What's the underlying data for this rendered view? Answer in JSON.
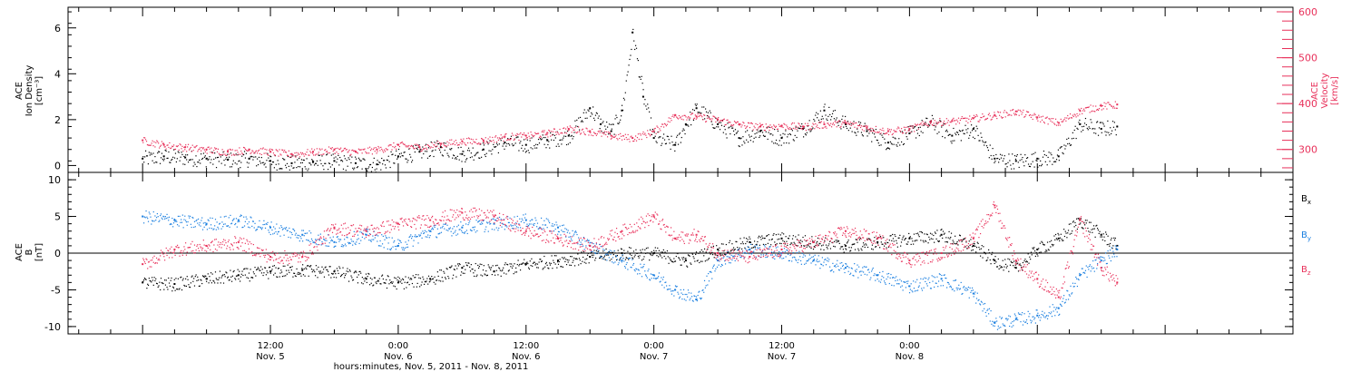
{
  "colors": {
    "axis": "#000000",
    "black_series": "#000000",
    "red_series": "#e8305a",
    "blue_series": "#1a7fe0",
    "zero_line": "#000000"
  },
  "chart_data": [
    {
      "type": "scatter",
      "panel": "top",
      "ylabel_left": [
        "ACE",
        "Ion Density",
        "[cm⁻³]"
      ],
      "ylabel_right": [
        "ACE",
        "Velocity",
        "[km/s]"
      ],
      "ylim_left": [
        -0.3,
        6.9
      ],
      "yticks_left": [
        0,
        2,
        4,
        6
      ],
      "ylim_right": [
        250,
        610
      ],
      "yticks_right": [
        300,
        400,
        500,
        600
      ],
      "grid": false,
      "series": [
        {
          "axis": "left",
          "color": "black",
          "points": [
            [
              0,
              0.3
            ],
            [
              2,
              0.4
            ],
            [
              4,
              0.35
            ],
            [
              6,
              0.3
            ],
            [
              8,
              0.25
            ],
            [
              10,
              0.3
            ],
            [
              12,
              0.2
            ],
            [
              14,
              0.1
            ],
            [
              16,
              0.15
            ],
            [
              18,
              0.2
            ],
            [
              20,
              0.1
            ],
            [
              22,
              0.05
            ],
            [
              24,
              0.4
            ],
            [
              26,
              0.6
            ],
            [
              28,
              0.8
            ],
            [
              30,
              0.5
            ],
            [
              32,
              0.7
            ],
            [
              34,
              1.0
            ],
            [
              36,
              0.9
            ],
            [
              38,
              1.1
            ],
            [
              40,
              1.3
            ],
            [
              42,
              2.5
            ],
            [
              43,
              1.8
            ],
            [
              44,
              1.5
            ],
            [
              45,
              2.4
            ],
            [
              46,
              5.8
            ],
            [
              47,
              3.0
            ],
            [
              48,
              1.2
            ],
            [
              50,
              0.9
            ],
            [
              51,
              1.8
            ],
            [
              52,
              2.5
            ],
            [
              54,
              1.8
            ],
            [
              56,
              1.2
            ],
            [
              58,
              1.5
            ],
            [
              60,
              1.2
            ],
            [
              62,
              1.6
            ],
            [
              64,
              2.4
            ],
            [
              66,
              1.8
            ],
            [
              68,
              1.5
            ],
            [
              70,
              1.0
            ],
            [
              72,
              1.4
            ],
            [
              74,
              1.9
            ],
            [
              76,
              1.3
            ],
            [
              78,
              1.6
            ],
            [
              80,
              0.3
            ],
            [
              82,
              0.2
            ],
            [
              84,
              0.3
            ],
            [
              86,
              0.4
            ],
            [
              88,
              1.8
            ],
            [
              90,
              1.6
            ],
            [
              91.5,
              1.7
            ]
          ]
        },
        {
          "axis": "right",
          "color": "red",
          "points": [
            [
              0,
              320
            ],
            [
              2,
              310
            ],
            [
              4,
              305
            ],
            [
              6,
              300
            ],
            [
              8,
              295
            ],
            [
              10,
              300
            ],
            [
              12,
              295
            ],
            [
              14,
              290
            ],
            [
              16,
              295
            ],
            [
              18,
              300
            ],
            [
              20,
              295
            ],
            [
              22,
              300
            ],
            [
              24,
              310
            ],
            [
              26,
              305
            ],
            [
              28,
              312
            ],
            [
              30,
              318
            ],
            [
              32,
              320
            ],
            [
              34,
              328
            ],
            [
              36,
              330
            ],
            [
              38,
              336
            ],
            [
              40,
              345
            ],
            [
              42,
              340
            ],
            [
              44,
              330
            ],
            [
              46,
              325
            ],
            [
              48,
              340
            ],
            [
              50,
              375
            ],
            [
              52,
              372
            ],
            [
              54,
              365
            ],
            [
              56,
              355
            ],
            [
              58,
              350
            ],
            [
              60,
              352
            ],
            [
              62,
              350
            ],
            [
              64,
              355
            ],
            [
              66,
              358
            ],
            [
              68,
              348
            ],
            [
              70,
              340
            ],
            [
              72,
              345
            ],
            [
              74,
              360
            ],
            [
              76,
              362
            ],
            [
              78,
              368
            ],
            [
              80,
              375
            ],
            [
              82,
              383
            ],
            [
              84,
              370
            ],
            [
              86,
              358
            ],
            [
              88,
              385
            ],
            [
              90,
              395
            ],
            [
              91.5,
              398
            ]
          ]
        }
      ]
    },
    {
      "type": "scatter",
      "panel": "bottom",
      "ylabel_left": [
        "ACE",
        "B",
        "[nT]"
      ],
      "ylim": [
        -11,
        11
      ],
      "yticks": [
        -10,
        -5,
        0,
        5,
        10
      ],
      "legend_position": "right",
      "legend": [
        {
          "base": "B",
          "sub": "x",
          "color": "black"
        },
        {
          "base": "B",
          "sub": "y",
          "color": "blue"
        },
        {
          "base": "B",
          "sub": "z",
          "color": "red"
        }
      ],
      "series": [
        {
          "name": "Bx",
          "color": "black",
          "points": [
            [
              0,
              -4
            ],
            [
              3,
              -4.2
            ],
            [
              6,
              -3.5
            ],
            [
              9,
              -3
            ],
            [
              12,
              -2.5
            ],
            [
              15,
              -2.3
            ],
            [
              18,
              -2.5
            ],
            [
              21,
              -3.5
            ],
            [
              24,
              -4
            ],
            [
              27,
              -3.5
            ],
            [
              30,
              -2
            ],
            [
              33,
              -2.5
            ],
            [
              36,
              -1.5
            ],
            [
              39,
              -1
            ],
            [
              42,
              -0.5
            ],
            [
              45,
              0
            ],
            [
              48,
              0
            ],
            [
              51,
              -1
            ],
            [
              54,
              0.5
            ],
            [
              57,
              1.5
            ],
            [
              60,
              2
            ],
            [
              63,
              1.5
            ],
            [
              66,
              1
            ],
            [
              69,
              1.5
            ],
            [
              72,
              2
            ],
            [
              75,
              2.5
            ],
            [
              78,
              1
            ],
            [
              80,
              -1
            ],
            [
              82,
              -2
            ],
            [
              84,
              0.5
            ],
            [
              86,
              2
            ],
            [
              88,
              4.5
            ],
            [
              90,
              2.5
            ],
            [
              91.5,
              1
            ]
          ]
        },
        {
          "name": "By",
          "color": "blue",
          "points": [
            [
              0,
              5
            ],
            [
              3,
              4.5
            ],
            [
              6,
              4
            ],
            [
              9,
              4.5
            ],
            [
              12,
              3.5
            ],
            [
              15,
              2.5
            ],
            [
              18,
              1.5
            ],
            [
              21,
              2.5
            ],
            [
              24,
              1
            ],
            [
              27,
              3
            ],
            [
              30,
              3.5
            ],
            [
              33,
              4
            ],
            [
              36,
              4.5
            ],
            [
              39,
              3.5
            ],
            [
              42,
              1
            ],
            [
              45,
              -1
            ],
            [
              48,
              -3
            ],
            [
              50,
              -5
            ],
            [
              52,
              -6.3
            ],
            [
              54,
              -1
            ],
            [
              57,
              0.5
            ],
            [
              60,
              0
            ],
            [
              63,
              -1
            ],
            [
              66,
              -2
            ],
            [
              69,
              -3
            ],
            [
              72,
              -4.5
            ],
            [
              75,
              -3.5
            ],
            [
              78,
              -5.5
            ],
            [
              80,
              -9.5
            ],
            [
              82,
              -9
            ],
            [
              84,
              -8.5
            ],
            [
              86,
              -7.5
            ],
            [
              88,
              -3
            ],
            [
              90,
              -1
            ],
            [
              91.5,
              0.5
            ]
          ]
        },
        {
          "name": "Bz",
          "color": "red",
          "points": [
            [
              0,
              -1.5
            ],
            [
              3,
              0.5
            ],
            [
              6,
              1
            ],
            [
              9,
              1.5
            ],
            [
              12,
              -0.5
            ],
            [
              15,
              -0.5
            ],
            [
              18,
              3.5
            ],
            [
              21,
              3
            ],
            [
              24,
              4
            ],
            [
              27,
              4.5
            ],
            [
              30,
              5.5
            ],
            [
              33,
              5
            ],
            [
              36,
              3
            ],
            [
              39,
              2
            ],
            [
              42,
              1
            ],
            [
              45,
              3
            ],
            [
              48,
              5
            ],
            [
              50,
              2
            ],
            [
              52,
              2.5
            ],
            [
              54,
              0
            ],
            [
              57,
              -0.5
            ],
            [
              60,
              0.5
            ],
            [
              63,
              1.5
            ],
            [
              66,
              3
            ],
            [
              69,
              2
            ],
            [
              72,
              -1
            ],
            [
              75,
              0
            ],
            [
              78,
              2
            ],
            [
              80,
              6.5
            ],
            [
              82,
              -1
            ],
            [
              84,
              -3.5
            ],
            [
              86,
              -6
            ],
            [
              88,
              4.5
            ],
            [
              90,
              -2
            ],
            [
              91.5,
              -4
            ]
          ]
        }
      ]
    }
  ],
  "x_axis": {
    "range_hours": [
      -7,
      108
    ],
    "ticks": [
      {
        "hours": 12,
        "time": "12:00",
        "date": "Nov. 5"
      },
      {
        "hours": 24,
        "time": "0:00",
        "date": "Nov. 6"
      },
      {
        "hours": 36,
        "time": "12:00",
        "date": "Nov. 6"
      },
      {
        "hours": 48,
        "time": "0:00",
        "date": "Nov. 7"
      },
      {
        "hours": 60,
        "time": "12:00",
        "date": "Nov. 7"
      },
      {
        "hours": 72,
        "time": "0:00",
        "date": "Nov. 8"
      }
    ],
    "title": "hours:minutes, Nov. 5, 2011 - Nov. 8, 2011"
  }
}
